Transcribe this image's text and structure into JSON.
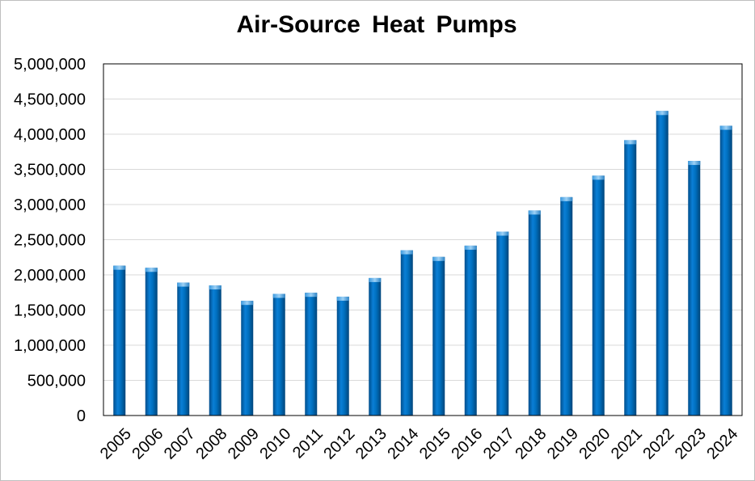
{
  "chart_data": {
    "type": "bar",
    "title": "Air-Source Heat Pumps",
    "xlabel": "",
    "ylabel": "",
    "ylim": [
      0,
      5000000
    ],
    "ytick_step": 500000,
    "categories": [
      "2005",
      "2006",
      "2007",
      "2008",
      "2009",
      "2010",
      "2011",
      "2012",
      "2013",
      "2014",
      "2015",
      "2016",
      "2017",
      "2018",
      "2019",
      "2020",
      "2021",
      "2022",
      "2023",
      "2024"
    ],
    "values": [
      2130000,
      2100000,
      1890000,
      1850000,
      1630000,
      1730000,
      1745000,
      1690000,
      1955000,
      2350000,
      2255000,
      2415000,
      2615000,
      2915000,
      3105000,
      3410000,
      3915000,
      4330000,
      3620000,
      4120000
    ],
    "grid": true,
    "legend": "none",
    "bar_color": "#0070C0"
  }
}
